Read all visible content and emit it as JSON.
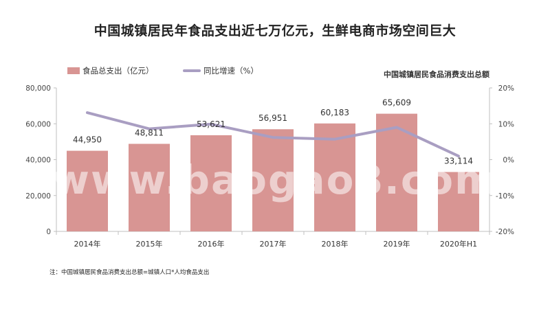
{
  "title": "中国城镇居民年食品支出近七万亿元，生鲜电商市场空间巨大",
  "note": "注：中国城镇居民食品消费支出总额=城镇人口*人均食品支出",
  "watermark": "www.baogao8.com",
  "colors": {
    "bar": "#d89593",
    "line": "#a99ec2",
    "axis": "#bfbfbf"
  },
  "chart_data": {
    "type": "bar",
    "title": "中国城镇居民食品消费支出总额",
    "categories": [
      "2014年",
      "2015年",
      "2016年",
      "2017年",
      "2018年",
      "2019年",
      "2020年H1"
    ],
    "series": [
      {
        "name": "食品总支出（亿元）",
        "type": "bar",
        "axis": "left",
        "values": [
          44950,
          48811,
          53621,
          56951,
          60183,
          65609,
          33114
        ],
        "labels": [
          "44,950",
          "48,811",
          "53,621",
          "56,951",
          "60,183",
          "65,609",
          "33,114"
        ]
      },
      {
        "name": "同比增速（%）",
        "type": "line",
        "axis": "right",
        "values": [
          13.1,
          8.6,
          9.9,
          6.2,
          5.7,
          9.0,
          1.0
        ]
      }
    ],
    "ylim": [
      0,
      80000
    ],
    "yticks": [
      "0",
      "20,000",
      "40,000",
      "60,000",
      "80,000"
    ],
    "y2lim": [
      -20,
      20
    ],
    "y2ticks": [
      "-20%",
      "-10%",
      "0%",
      "10%",
      "20%"
    ],
    "legend": "top-left",
    "grid": false
  }
}
